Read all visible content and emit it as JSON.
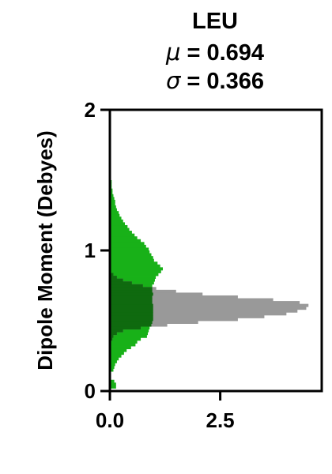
{
  "chart_data": {
    "type": "histogram",
    "orientation": "horizontal",
    "title": "LEU",
    "mu_symbol": "μ",
    "mu_text": " = 0.694",
    "sigma_symbol": "σ",
    "sigma_text": " = 0.366",
    "ylabel": "Dipole Moment (Debyes)",
    "xlabel": "",
    "xlim": [
      0,
      4.8
    ],
    "ylim": [
      0,
      2
    ],
    "xticks": [
      "0.0",
      "2.5"
    ],
    "yticks": [
      "0",
      "1",
      "2"
    ],
    "grid": false,
    "bin_width": 0.02,
    "colors": {
      "green_series": "#18b118",
      "gray_series": "#999999",
      "overlap": "#0f6a0f",
      "axes": "#000000"
    },
    "series": [
      {
        "color_key": "green_series",
        "bins": [
          [
            0.02,
            0.14
          ],
          [
            0.04,
            0.14
          ],
          [
            0.06,
            0.1
          ],
          [
            0.14,
            0.08
          ],
          [
            0.16,
            0.1
          ],
          [
            0.18,
            0.12
          ],
          [
            0.2,
            0.16
          ],
          [
            0.22,
            0.2
          ],
          [
            0.24,
            0.26
          ],
          [
            0.26,
            0.32
          ],
          [
            0.28,
            0.38
          ],
          [
            0.3,
            0.48
          ],
          [
            0.32,
            0.58
          ],
          [
            0.34,
            0.62
          ],
          [
            0.36,
            0.7
          ],
          [
            0.38,
            0.84
          ],
          [
            0.4,
            0.86
          ],
          [
            0.42,
            0.88
          ],
          [
            0.44,
            0.9
          ],
          [
            0.46,
            0.94
          ],
          [
            0.48,
            0.96
          ],
          [
            0.5,
            0.98
          ],
          [
            0.52,
            0.98
          ],
          [
            0.54,
            0.98
          ],
          [
            0.56,
            0.98
          ],
          [
            0.58,
            0.98
          ],
          [
            0.6,
            0.98
          ],
          [
            0.62,
            0.96
          ],
          [
            0.64,
            0.96
          ],
          [
            0.66,
            0.96
          ],
          [
            0.68,
            0.98
          ],
          [
            0.7,
            0.96
          ],
          [
            0.72,
            0.96
          ],
          [
            0.74,
            0.96
          ],
          [
            0.76,
            1.0
          ],
          [
            0.78,
            1.02
          ],
          [
            0.8,
            1.04
          ],
          [
            0.82,
            1.1
          ],
          [
            0.84,
            1.16
          ],
          [
            0.86,
            1.2
          ],
          [
            0.88,
            1.14
          ],
          [
            0.9,
            1.08
          ],
          [
            0.92,
            1.0
          ],
          [
            0.94,
            0.98
          ],
          [
            0.96,
            0.94
          ],
          [
            0.98,
            0.9
          ],
          [
            1.0,
            0.88
          ],
          [
            1.02,
            0.82
          ],
          [
            1.04,
            0.78
          ],
          [
            1.06,
            0.7
          ],
          [
            1.08,
            0.62
          ],
          [
            1.1,
            0.56
          ],
          [
            1.12,
            0.5
          ],
          [
            1.14,
            0.44
          ],
          [
            1.16,
            0.4
          ],
          [
            1.18,
            0.34
          ],
          [
            1.2,
            0.3
          ],
          [
            1.22,
            0.26
          ],
          [
            1.24,
            0.22
          ],
          [
            1.26,
            0.2
          ],
          [
            1.28,
            0.16
          ],
          [
            1.3,
            0.14
          ],
          [
            1.32,
            0.12
          ],
          [
            1.34,
            0.12
          ],
          [
            1.36,
            0.1
          ],
          [
            1.38,
            0.08
          ],
          [
            1.4,
            0.06
          ],
          [
            1.42,
            0.06
          ],
          [
            1.44,
            0.04
          ],
          [
            1.46,
            0.04
          ],
          [
            1.48,
            0.04
          ],
          [
            1.5,
            0.02
          ]
        ]
      },
      {
        "color_key": "gray_series",
        "bins": [
          [
            0.36,
            0.06
          ],
          [
            0.38,
            0.08
          ],
          [
            0.4,
            0.16
          ],
          [
            0.42,
            0.3
          ],
          [
            0.44,
            0.7
          ],
          [
            0.46,
            1.3
          ],
          [
            0.48,
            2.0
          ],
          [
            0.5,
            2.9
          ],
          [
            0.52,
            3.5
          ],
          [
            0.54,
            4.0
          ],
          [
            0.56,
            4.25
          ],
          [
            0.58,
            4.45
          ],
          [
            0.6,
            4.5
          ],
          [
            0.62,
            4.3
          ],
          [
            0.64,
            3.7
          ],
          [
            0.66,
            2.9
          ],
          [
            0.68,
            2.1
          ],
          [
            0.7,
            1.5
          ],
          [
            0.72,
            1.05
          ],
          [
            0.74,
            0.75
          ],
          [
            0.76,
            0.5
          ],
          [
            0.78,
            0.3
          ],
          [
            0.8,
            0.16
          ],
          [
            0.82,
            0.08
          ]
        ]
      }
    ]
  }
}
